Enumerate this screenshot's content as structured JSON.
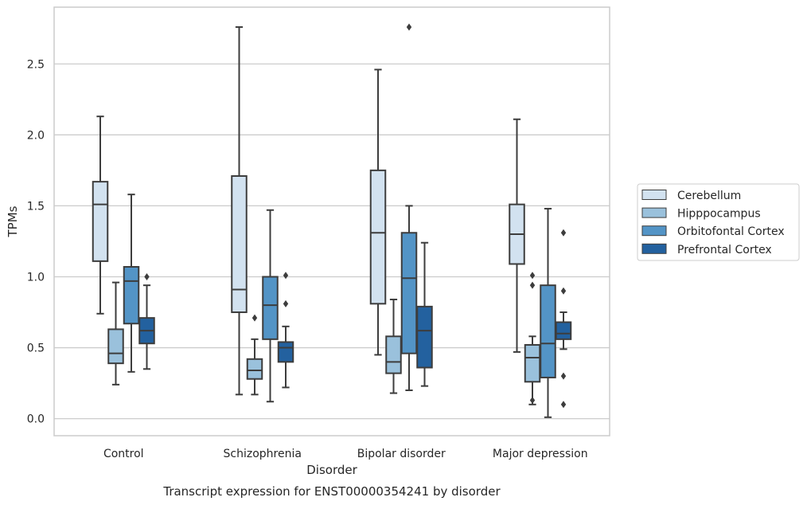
{
  "chart_data": {
    "type": "box",
    "title": "Transcript expression for ENST00000354241 by disorder",
    "xlabel": "Disorder",
    "ylabel": "TPMs",
    "ylim": [
      -0.12,
      2.9
    ],
    "yticks": [
      "0.0",
      "0.5",
      "1.0",
      "1.5",
      "2.0",
      "2.5"
    ],
    "ytick_values": [
      0.0,
      0.5,
      1.0,
      1.5,
      2.0,
      2.5
    ],
    "grid": "horizontal",
    "legend_position": "right",
    "categories": [
      "Control",
      "Schizophrenia",
      "Bipolar disorder",
      "Major depression"
    ],
    "series": [
      {
        "name": "Cerebellum",
        "color": "#d2e2f0",
        "boxes": [
          {
            "min": 0.74,
            "q1": 1.11,
            "median": 1.51,
            "q3": 1.67,
            "max": 2.13,
            "outliers": []
          },
          {
            "min": 0.17,
            "q1": 0.75,
            "median": 0.91,
            "q3": 1.71,
            "max": 2.76,
            "outliers": []
          },
          {
            "min": 0.45,
            "q1": 0.81,
            "median": 1.31,
            "q3": 1.75,
            "max": 2.46,
            "outliers": []
          },
          {
            "min": 0.47,
            "q1": 1.09,
            "median": 1.3,
            "q3": 1.51,
            "max": 2.11,
            "outliers": []
          }
        ]
      },
      {
        "name": "Hipppocampus",
        "color": "#9ac1dc",
        "boxes": [
          {
            "min": 0.24,
            "q1": 0.39,
            "median": 0.46,
            "q3": 0.63,
            "max": 0.96,
            "outliers": []
          },
          {
            "min": 0.17,
            "q1": 0.28,
            "median": 0.34,
            "q3": 0.42,
            "max": 0.56,
            "outliers": [
              0.71
            ]
          },
          {
            "min": 0.18,
            "q1": 0.32,
            "median": 0.4,
            "q3": 0.58,
            "max": 0.84,
            "outliers": []
          },
          {
            "min": 0.1,
            "q1": 0.26,
            "median": 0.43,
            "q3": 0.52,
            "max": 0.58,
            "outliers": [
              0.13,
              0.94,
              1.01
            ]
          }
        ]
      },
      {
        "name": "Orbitofontal Cortex",
        "color": "#5394c6",
        "boxes": [
          {
            "min": 0.33,
            "q1": 0.67,
            "median": 0.97,
            "q3": 1.07,
            "max": 1.58,
            "outliers": []
          },
          {
            "min": 0.12,
            "q1": 0.56,
            "median": 0.8,
            "q3": 1.0,
            "max": 1.47,
            "outliers": []
          },
          {
            "min": 0.2,
            "q1": 0.46,
            "median": 0.99,
            "q3": 1.31,
            "max": 1.5,
            "outliers": [
              2.76
            ]
          },
          {
            "min": 0.01,
            "q1": 0.29,
            "median": 0.53,
            "q3": 0.94,
            "max": 1.48,
            "outliers": []
          }
        ]
      },
      {
        "name": "Prefrontal Cortex",
        "color": "#23619f",
        "boxes": [
          {
            "min": 0.35,
            "q1": 0.53,
            "median": 0.62,
            "q3": 0.71,
            "max": 0.94,
            "outliers": [
              1.0
            ]
          },
          {
            "min": 0.22,
            "q1": 0.4,
            "median": 0.5,
            "q3": 0.54,
            "max": 0.65,
            "outliers": [
              0.81,
              1.01
            ]
          },
          {
            "min": 0.23,
            "q1": 0.36,
            "median": 0.62,
            "q3": 0.79,
            "max": 1.24,
            "outliers": []
          },
          {
            "min": 0.49,
            "q1": 0.56,
            "median": 0.6,
            "q3": 0.68,
            "max": 0.75,
            "outliers": [
              0.1,
              0.3,
              0.9,
              1.31
            ]
          }
        ]
      }
    ]
  }
}
